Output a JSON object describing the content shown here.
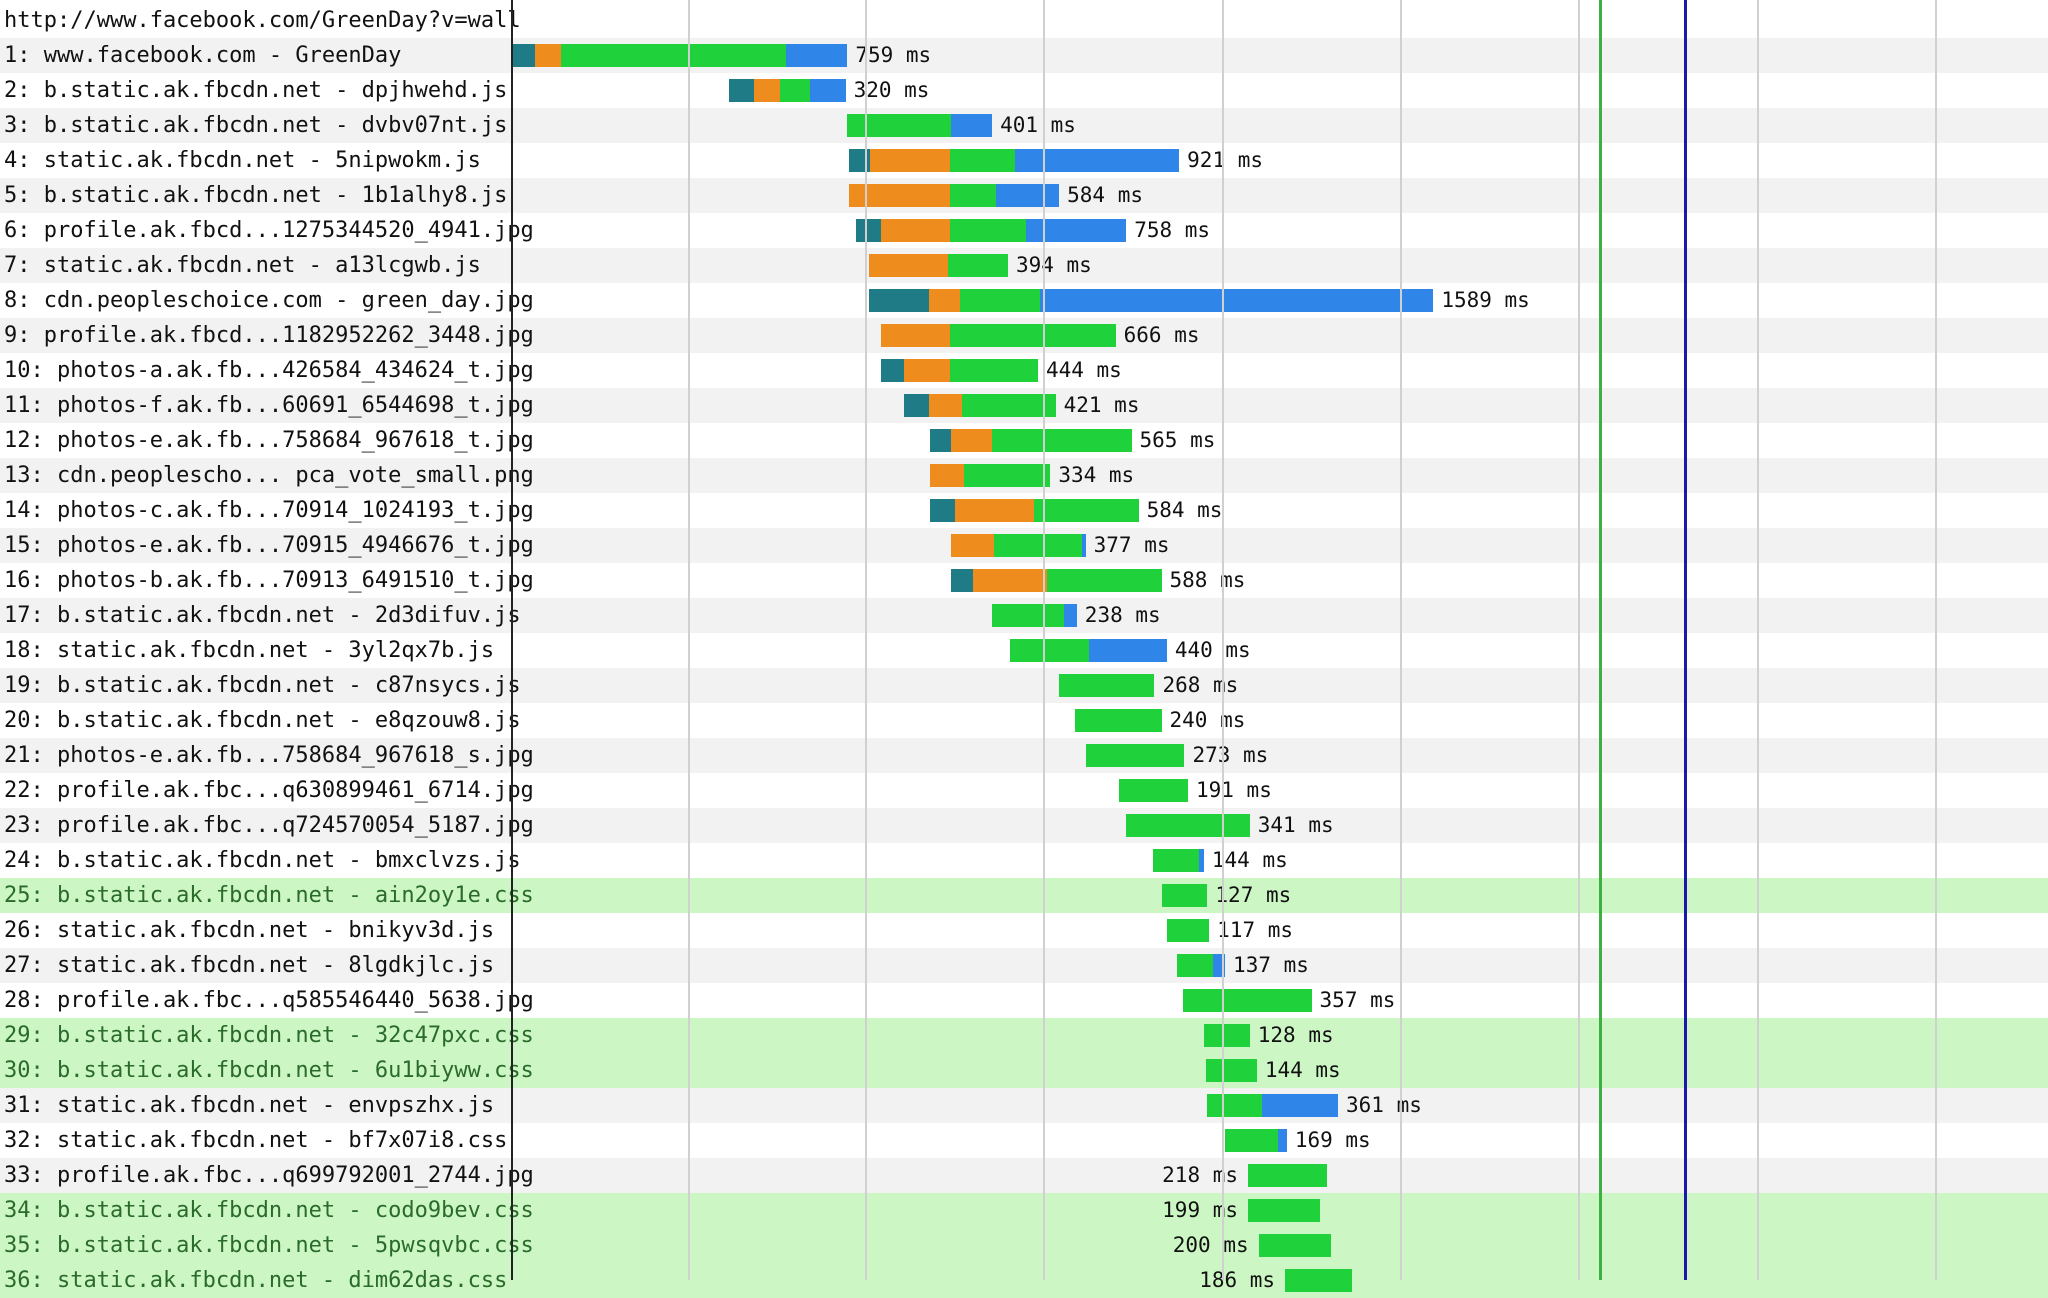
{
  "page_url": "http://www.facebook.com/GreenDay?v=wall",
  "colors": {
    "dns": "#1f7b85",
    "connect": "#ef8c1e",
    "ttfb": "#1fd13a",
    "download": "#2f86e8",
    "highlight_row": "#ccf7c4",
    "start_render_line": "#3fb03f",
    "doc_complete_line": "#1a1aa8"
  },
  "requests": [
    {
      "label": "1: www.facebook.com - GreenDay",
      "time": "759 ms",
      "start": 0.0,
      "dns": 0.13,
      "connect": 0.15,
      "ttfb": 1.27,
      "download": 0.35,
      "label_side": "right",
      "highlight": false
    },
    {
      "label": "2: b.static.ak.fbcdn.net - dpjhwehd.js",
      "time": "320 ms",
      "start": 1.23,
      "dns": 0.14,
      "connect": 0.15,
      "ttfb": 0.17,
      "download": 0.2,
      "label_side": "right",
      "highlight": false
    },
    {
      "label": "3: b.static.ak.fbcdn.net - dvbv07nt.js",
      "time": "401 ms",
      "start": 1.9,
      "dns": 0,
      "connect": 0,
      "ttfb": 0.59,
      "download": 0.23,
      "label_side": "right",
      "highlight": false
    },
    {
      "label": "4: static.ak.fbcdn.net - 5nipwokm.js",
      "time": "921 ms",
      "start": 1.91,
      "dns": 0.12,
      "connect": 0.45,
      "ttfb": 0.37,
      "download": 0.93,
      "label_side": "right",
      "highlight": false
    },
    {
      "label": "5: b.static.ak.fbcdn.net - 1b1alhy8.js",
      "time": "584 ms",
      "start": 1.91,
      "dns": 0,
      "connect": 0.57,
      "ttfb": 0.26,
      "download": 0.36,
      "label_side": "right",
      "highlight": false
    },
    {
      "label": "6: profile.ak.fbcd...1275344520_4941.jpg",
      "time": "758 ms",
      "start": 1.95,
      "dns": 0.14,
      "connect": 0.39,
      "ttfb": 0.43,
      "download": 0.57,
      "label_side": "right",
      "highlight": false
    },
    {
      "label": "7: static.ak.fbcdn.net - a13lcgwb.js",
      "time": "394 ms",
      "start": 2.02,
      "dns": 0,
      "connect": 0.45,
      "ttfb": 0.34,
      "download": 0,
      "label_side": "right",
      "highlight": false
    },
    {
      "label": "8: cdn.peopleschoice.com - green_day.jpg",
      "time": "1589 ms",
      "start": 2.02,
      "dns": 0.34,
      "connect": 0.18,
      "ttfb": 0.45,
      "download": 2.23,
      "label_side": "right",
      "highlight": false
    },
    {
      "label": "9: profile.ak.fbcd...1182952262_3448.jpg",
      "time": "666 ms",
      "start": 2.09,
      "dns": 0,
      "connect": 0.39,
      "ttfb": 0.94,
      "download": 0,
      "label_side": "right",
      "highlight": false
    },
    {
      "label": "10: photos-a.ak.fb...426584_434624_t.jpg",
      "time": "444 ms",
      "start": 2.09,
      "dns": 0.13,
      "connect": 0.26,
      "ttfb": 0.5,
      "download": 0,
      "label_side": "right",
      "highlight": false
    },
    {
      "label": "11: photos-f.ak.fb...60691_6544698_t.jpg",
      "time": "421 ms",
      "start": 2.22,
      "dns": 0.14,
      "connect": 0.19,
      "ttfb": 0.53,
      "download": 0,
      "label_side": "right",
      "highlight": false
    },
    {
      "label": "12: photos-e.ak.fb...758684_967618_t.jpg",
      "time": "565 ms",
      "start": 2.37,
      "dns": 0.12,
      "connect": 0.23,
      "ttfb": 0.79,
      "download": 0,
      "label_side": "right",
      "highlight": false
    },
    {
      "label": "13: cdn.peoplescho... pca_vote_small.png",
      "time": "334 ms",
      "start": 2.37,
      "dns": 0,
      "connect": 0.19,
      "ttfb": 0.49,
      "download": 0,
      "label_side": "right",
      "highlight": false
    },
    {
      "label": "14: photos-c.ak.fb...70914_1024193_t.jpg",
      "time": "584 ms",
      "start": 2.37,
      "dns": 0.14,
      "connect": 0.45,
      "ttfb": 0.59,
      "download": 0,
      "label_side": "right",
      "highlight": false
    },
    {
      "label": "15: photos-e.ak.fb...70915_4946676_t.jpg",
      "time": "377 ms",
      "start": 2.49,
      "dns": 0,
      "connect": 0.24,
      "ttfb": 0.5,
      "download": 0.02,
      "label_side": "right",
      "highlight": false
    },
    {
      "label": "16: photos-b.ak.fb...70913_6491510_t.jpg",
      "time": "588 ms",
      "start": 2.49,
      "dns": 0.12,
      "connect": 0.42,
      "ttfb": 0.65,
      "download": 0,
      "label_side": "right",
      "highlight": false
    },
    {
      "label": "17: b.static.ak.fbcdn.net - 2d3difuv.js",
      "time": "238 ms",
      "start": 2.72,
      "dns": 0,
      "connect": 0,
      "ttfb": 0.41,
      "download": 0.07,
      "label_side": "right",
      "highlight": false
    },
    {
      "label": "18: static.ak.fbcdn.net - 3yl2qx7b.js",
      "time": "440 ms",
      "start": 2.82,
      "dns": 0,
      "connect": 0,
      "ttfb": 0.45,
      "download": 0.44,
      "label_side": "right",
      "highlight": false
    },
    {
      "label": "19: b.static.ak.fbcdn.net - c87nsycs.js",
      "time": "268 ms",
      "start": 3.1,
      "dns": 0,
      "connect": 0,
      "ttfb": 0.54,
      "download": 0,
      "label_side": "right",
      "highlight": false
    },
    {
      "label": "20: b.static.ak.fbcdn.net - e8qzouw8.js",
      "time": "240 ms",
      "start": 3.19,
      "dns": 0,
      "connect": 0,
      "ttfb": 0.49,
      "download": 0,
      "label_side": "right",
      "highlight": false
    },
    {
      "label": "21: photos-e.ak.fb...758684_967618_s.jpg",
      "time": "273 ms",
      "start": 3.25,
      "dns": 0,
      "connect": 0,
      "ttfb": 0.56,
      "download": 0,
      "label_side": "right",
      "highlight": false
    },
    {
      "label": "22: profile.ak.fbc...q630899461_6714.jpg",
      "time": "191 ms",
      "start": 3.44,
      "dns": 0,
      "connect": 0,
      "ttfb": 0.39,
      "download": 0,
      "label_side": "right",
      "highlight": false
    },
    {
      "label": "23: profile.ak.fbc...q724570054_5187.jpg",
      "time": "341 ms",
      "start": 3.48,
      "dns": 0,
      "connect": 0,
      "ttfb": 0.7,
      "download": 0,
      "label_side": "right",
      "highlight": false
    },
    {
      "label": "24: b.static.ak.fbcdn.net - bmxclvzs.js",
      "time": "144 ms",
      "start": 3.63,
      "dns": 0,
      "connect": 0,
      "ttfb": 0.26,
      "download": 0.03,
      "label_side": "right",
      "highlight": false
    },
    {
      "label": "25: b.static.ak.fbcdn.net - ain2oy1e.css",
      "time": "127 ms",
      "start": 3.68,
      "dns": 0,
      "connect": 0,
      "ttfb": 0.26,
      "download": 0,
      "label_side": "right",
      "highlight": true
    },
    {
      "label": "26: static.ak.fbcdn.net - bnikyv3d.js",
      "time": "117 ms",
      "start": 3.71,
      "dns": 0,
      "connect": 0,
      "ttfb": 0.24,
      "download": 0,
      "label_side": "right",
      "highlight": false
    },
    {
      "label": "27: static.ak.fbcdn.net - 8lgdkjlc.js",
      "time": "137 ms",
      "start": 3.77,
      "dns": 0,
      "connect": 0,
      "ttfb": 0.2,
      "download": 0.07,
      "label_side": "right",
      "highlight": false
    },
    {
      "label": "28: profile.ak.fbc...q585546440_5638.jpg",
      "time": "357 ms",
      "start": 3.8,
      "dns": 0,
      "connect": 0,
      "ttfb": 0.73,
      "download": 0,
      "label_side": "right",
      "highlight": false
    },
    {
      "label": "29: b.static.ak.fbcdn.net - 32c47pxc.css",
      "time": "128 ms",
      "start": 3.92,
      "dns": 0,
      "connect": 0,
      "ttfb": 0.26,
      "download": 0,
      "label_side": "right",
      "highlight": true
    },
    {
      "label": "30: b.static.ak.fbcdn.net - 6u1biyww.css",
      "time": "144 ms",
      "start": 3.93,
      "dns": 0,
      "connect": 0,
      "ttfb": 0.29,
      "download": 0,
      "label_side": "right",
      "highlight": true
    },
    {
      "label": "31: static.ak.fbcdn.net - envpszhx.js",
      "time": "361 ms",
      "start": 3.94,
      "dns": 0,
      "connect": 0,
      "ttfb": 0.31,
      "download": 0.43,
      "label_side": "right",
      "highlight": false
    },
    {
      "label": "32: static.ak.fbcdn.net - bf7x07i8.css",
      "time": "169 ms",
      "start": 4.04,
      "dns": 0,
      "connect": 0,
      "ttfb": 0.3,
      "download": 0.05,
      "label_side": "right",
      "highlight": false
    },
    {
      "label": "33: profile.ak.fbc...q699792001_2744.jpg",
      "time": "218 ms",
      "start": 4.17,
      "dns": 0,
      "connect": 0,
      "ttfb": 0.45,
      "download": 0,
      "label_side": "left",
      "highlight": false
    },
    {
      "label": "34: b.static.ak.fbcdn.net - codo9bev.css",
      "time": "199 ms",
      "start": 4.17,
      "dns": 0,
      "connect": 0,
      "ttfb": 0.41,
      "download": 0,
      "label_side": "left",
      "highlight": true
    },
    {
      "label": "35: b.static.ak.fbcdn.net - 5pwsqvbc.css",
      "time": "200 ms",
      "start": 4.23,
      "dns": 0,
      "connect": 0,
      "ttfb": 0.41,
      "download": 0,
      "label_side": "left",
      "highlight": true
    },
    {
      "label": "36: static.ak.fbcdn.net - dim62das.css",
      "time": "186 ms",
      "start": 4.38,
      "dns": 0,
      "connect": 0,
      "ttfb": 0.38,
      "download": 0,
      "label_side": "left",
      "highlight": true
    }
  ]
}
